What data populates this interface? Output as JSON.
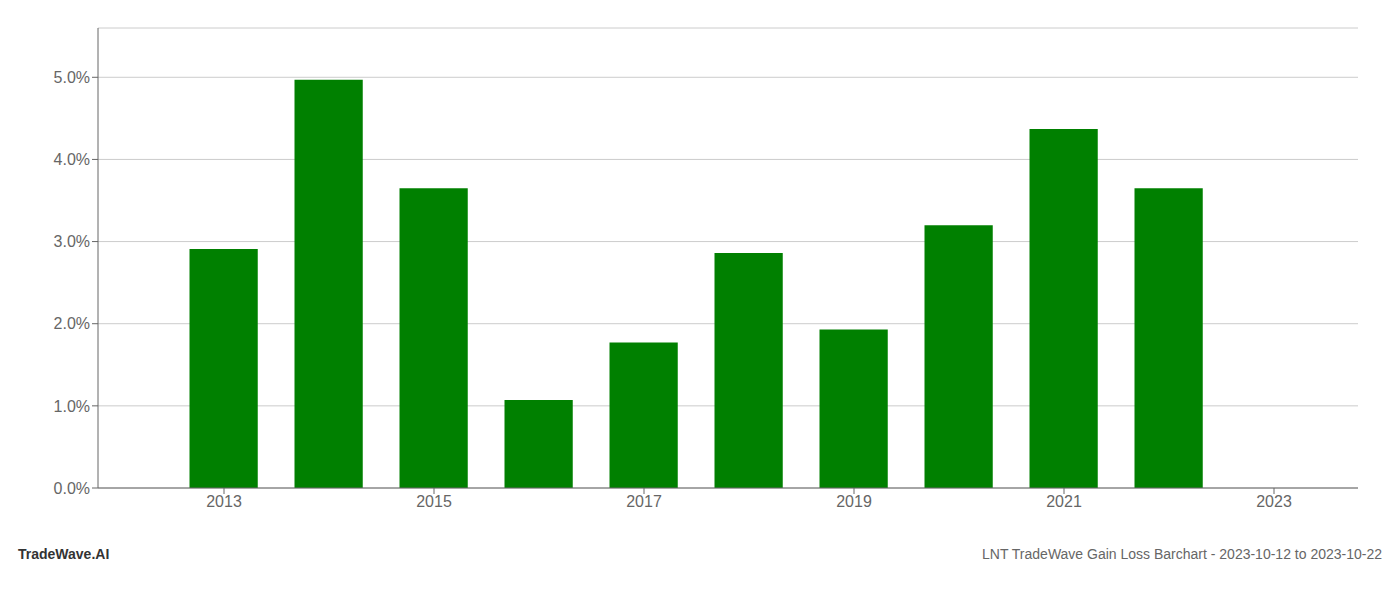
{
  "chart_data": {
    "type": "bar",
    "x": [
      2013,
      2014,
      2015,
      2016,
      2017,
      2018,
      2019,
      2020,
      2021,
      2022
    ],
    "values": [
      0.0291,
      0.0497,
      0.0365,
      0.0107,
      0.0177,
      0.0286,
      0.0193,
      0.032,
      0.0437,
      0.0365
    ],
    "color": "#008000",
    "xlim": [
      2011.8,
      2023.8
    ],
    "xticks": [
      2013,
      2015,
      2017,
      2019,
      2021,
      2023
    ],
    "ylim": [
      0,
      0.056
    ],
    "yticks": [
      {
        "value": 0.0,
        "label": "0.0%"
      },
      {
        "value": 0.01,
        "label": "1.0%"
      },
      {
        "value": 0.02,
        "label": "2.0%"
      },
      {
        "value": 0.03,
        "label": "3.0%"
      },
      {
        "value": 0.04,
        "label": "4.0%"
      },
      {
        "value": 0.05,
        "label": "5.0%"
      }
    ],
    "grid": true,
    "annotations": [
      "TradeWave.AI",
      "LNT TradeWave Gain Loss Barchart - 2023-10-12 to 2023-10-22"
    ]
  }
}
